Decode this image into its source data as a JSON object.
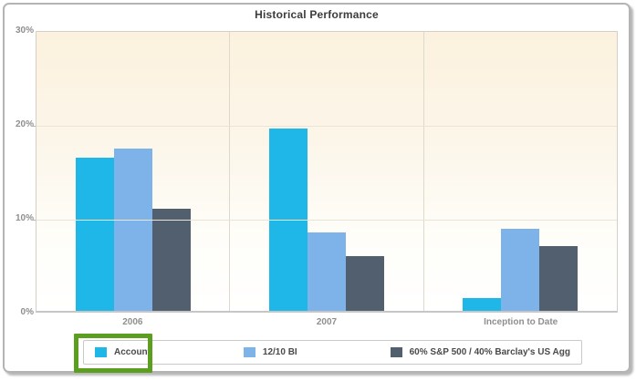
{
  "title": "Historical Performance",
  "chart_data": {
    "type": "bar",
    "title": "Historical Performance",
    "categories": [
      "2006",
      "2007",
      "Inception to Date"
    ],
    "series": [
      {
        "name": "Account",
        "color": "#1eb7e8",
        "values": [
          16.5,
          19.6,
          1.4
        ]
      },
      {
        "name": "12/10 BI",
        "color": "#7db3e8",
        "values": [
          17.5,
          8.4,
          8.8
        ]
      },
      {
        "name": "60% S&P 500 / 40% Barclay's US Agg",
        "color": "#525f6e",
        "values": [
          11.0,
          5.9,
          7.0
        ]
      }
    ],
    "xlabel": "",
    "ylabel": "",
    "ylim": [
      0,
      30
    ],
    "yticks": [
      "30%",
      "20%",
      "10%",
      "0%"
    ],
    "grid": true,
    "legend_position": "bottom"
  },
  "annotation": {
    "type": "highlight-box",
    "target": "legend-item-account",
    "color": "#5c9e20"
  },
  "colors": {
    "plot_background_top": "#fbf1de",
    "frame_border": "#b4b4b4",
    "axis_label": "#8f8f8f",
    "legend_text": "#4a4a4a"
  }
}
